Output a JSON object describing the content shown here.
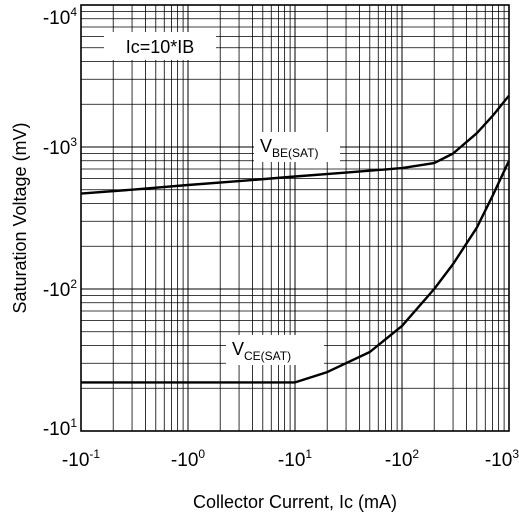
{
  "chart_data": {
    "type": "line",
    "xlabel": "Collector Current, Ic (mA)",
    "ylabel": "Saturation Voltage (mV)",
    "x_scale": "log",
    "y_scale": "log",
    "x_ticks": [
      {
        "value": -0.1,
        "base": "-10",
        "exp": "-1"
      },
      {
        "value": -1,
        "base": "-10",
        "exp": "0"
      },
      {
        "value": -10,
        "base": "-10",
        "exp": "1"
      },
      {
        "value": -100,
        "base": "-10",
        "exp": "2"
      },
      {
        "value": -1000,
        "base": "-10",
        "exp": "3"
      }
    ],
    "y_ticks": [
      {
        "value": -10,
        "base": "-10",
        "exp": "1"
      },
      {
        "value": -100,
        "base": "-10",
        "exp": "2"
      },
      {
        "value": -1000,
        "base": "-10",
        "exp": "3"
      },
      {
        "value": -10000,
        "base": "-10",
        "exp": "4"
      }
    ],
    "xlim": [
      -0.1,
      -1000
    ],
    "ylim": [
      -10,
      -10000
    ],
    "grid": true,
    "series": [
      {
        "name_main": "V",
        "name_sub": "BE(SAT)",
        "x": [
          -0.1,
          -0.3,
          -1,
          -3,
          -10,
          -30,
          -100,
          -200,
          -300,
          -500,
          -700,
          -1000
        ],
        "y": [
          -470,
          -500,
          -540,
          -575,
          -620,
          -660,
          -710,
          -770,
          -900,
          -1250,
          -1650,
          -2300
        ]
      },
      {
        "name_main": "V",
        "name_sub": "CE(SAT)",
        "x": [
          -0.1,
          -1,
          -10,
          -20,
          -50,
          -100,
          -200,
          -300,
          -500,
          -700,
          -1000
        ],
        "y": [
          -22,
          -22,
          -22,
          -26,
          -36,
          -55,
          -100,
          -150,
          -270,
          -450,
          -800
        ]
      }
    ],
    "annotations": [
      {
        "text": "Ic=10*IB"
      }
    ]
  }
}
